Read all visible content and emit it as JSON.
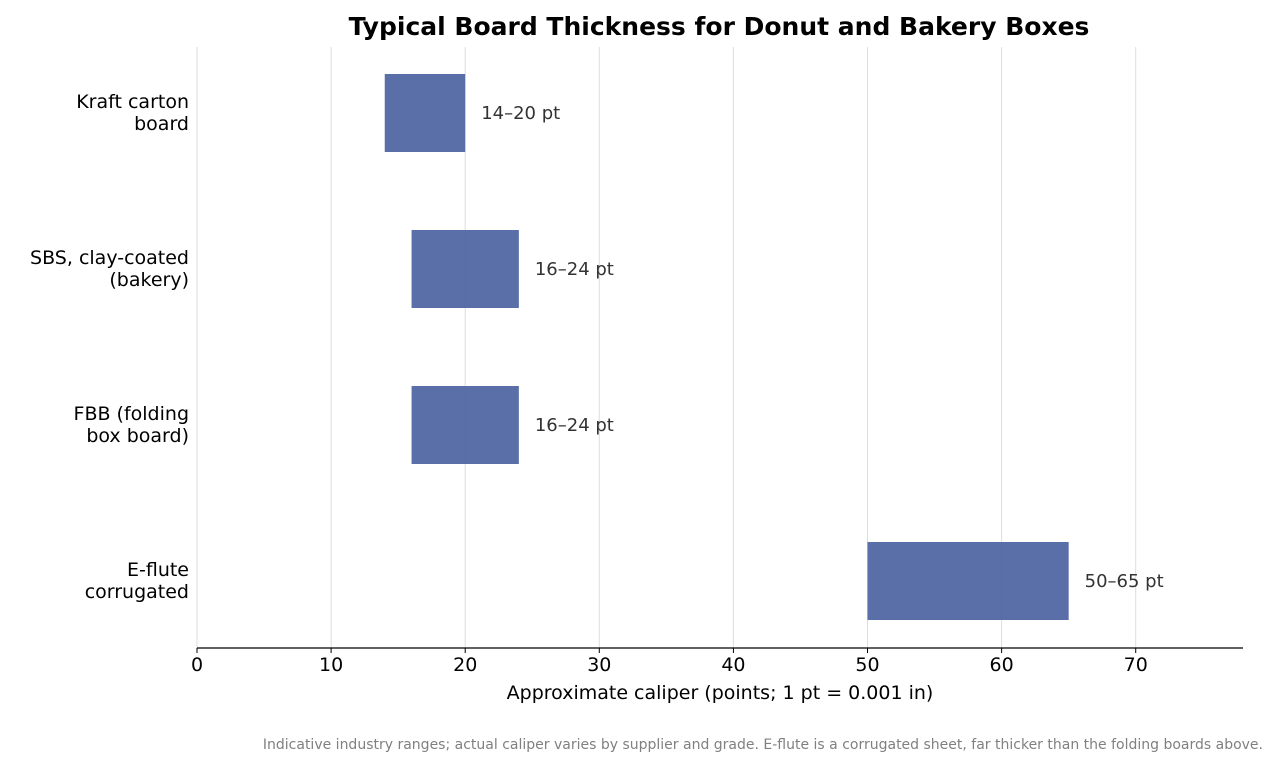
{
  "chart_data": {
    "type": "bar",
    "orientation": "horizontal",
    "title": "Typical Board Thickness for Donut and Bakery Boxes",
    "xlabel": "Approximate caliper (points; 1 pt = 0.001 in)",
    "ylabel": "",
    "xlim": [
      0,
      78
    ],
    "xticks": [
      0,
      10,
      20,
      30,
      40,
      50,
      60,
      70
    ],
    "grid": "vertical",
    "bar_color": "#4c63a0",
    "grid_color": "#dddddd",
    "categories": [
      [
        "Kraft carton",
        "board"
      ],
      [
        "SBS, clay-coated",
        "(bakery)"
      ],
      [
        "FBB (folding",
        "box board)"
      ],
      [
        "E-flute",
        "corrugated"
      ]
    ],
    "ranges": [
      [
        14,
        20
      ],
      [
        16,
        24
      ],
      [
        16,
        24
      ],
      [
        50,
        65
      ]
    ],
    "data_labels": [
      "14–20 pt",
      "16–24 pt",
      "16–24 pt",
      "50–65 pt"
    ],
    "footnote": "Indicative industry ranges; actual caliper varies by supplier and grade. E-flute is a corrugated sheet, far thicker than the folding boards above."
  }
}
